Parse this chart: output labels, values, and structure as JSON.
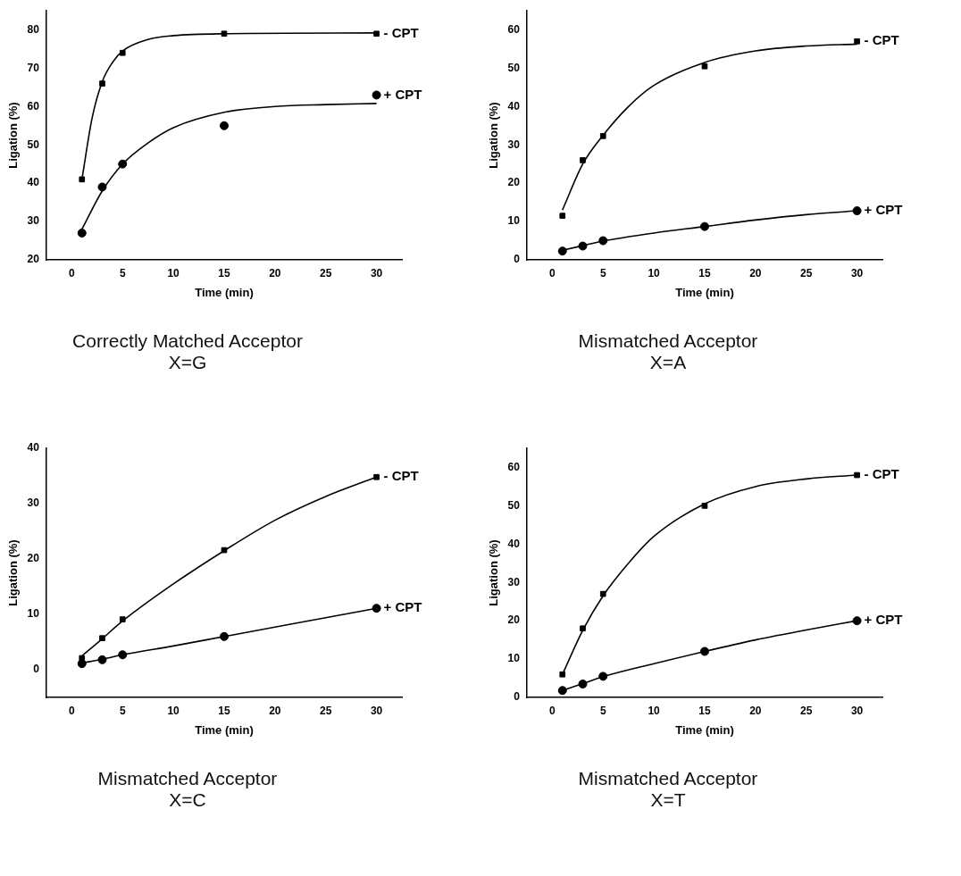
{
  "chart_data": [
    {
      "type": "scatter",
      "title": "Correctly Matched Acceptor",
      "subtitle": "X=G",
      "xlabel": "Time (min)",
      "ylabel": "Ligation (%)",
      "xlim": [
        -2.5,
        32.5
      ],
      "xticks": [
        0,
        5,
        10,
        15,
        20,
        25,
        30
      ],
      "ylim": [
        20,
        85
      ],
      "yticks": [
        20,
        30,
        40,
        50,
        60,
        70,
        80
      ],
      "grid": false,
      "legend": false,
      "series": [
        {
          "name": "- CPT",
          "color": "#000000",
          "marker": "square",
          "x": [
            1,
            3,
            5,
            15,
            30
          ],
          "values": [
            41,
            66,
            74,
            79,
            79
          ]
        },
        {
          "name": "+ CPT",
          "color": "#000000",
          "marker": "circle",
          "x": [
            1,
            3,
            5,
            15,
            30
          ],
          "values": [
            27,
            39,
            45,
            55,
            63
          ]
        },
        {
          "type": "line",
          "color": "#000000",
          "marker": "none",
          "x": [
            1,
            2,
            3,
            4,
            5,
            7.5,
            10,
            15,
            30
          ],
          "values": [
            41,
            57,
            66.5,
            71.5,
            74.5,
            77.5,
            78.5,
            79,
            79.2
          ]
        },
        {
          "type": "line",
          "color": "#000000",
          "marker": "none",
          "x": [
            1,
            3,
            5,
            7.5,
            10,
            15,
            20,
            25,
            30
          ],
          "values": [
            28,
            38,
            45,
            50.5,
            54.5,
            58.5,
            60,
            60.5,
            60.8
          ]
        }
      ]
    },
    {
      "type": "scatter",
      "title": "Mismatched Acceptor",
      "subtitle": "X=A",
      "xlabel": "Time (min)",
      "ylabel": "Ligation (%)",
      "xlim": [
        -2.5,
        32.5
      ],
      "xticks": [
        0,
        5,
        10,
        15,
        20,
        25,
        30
      ],
      "ylim": [
        0,
        65
      ],
      "yticks": [
        0,
        10,
        20,
        30,
        40,
        50,
        60
      ],
      "grid": false,
      "legend": false,
      "series": [
        {
          "name": "- CPT",
          "color": "#000000",
          "marker": "square",
          "x": [
            1,
            3,
            5,
            15,
            30
          ],
          "values": [
            11.5,
            26,
            32.3,
            50.5,
            57
          ]
        },
        {
          "name": "+ CPT",
          "color": "#000000",
          "marker": "circle",
          "x": [
            1,
            3,
            5,
            15,
            30
          ],
          "values": [
            2.3,
            3.6,
            5,
            8.7,
            12.8
          ]
        },
        {
          "type": "line",
          "color": "#000000",
          "marker": "none",
          "x": [
            1,
            3,
            5,
            7.5,
            10,
            15,
            20,
            25,
            30
          ],
          "values": [
            13,
            25,
            32.5,
            40,
            45.5,
            51.5,
            54.5,
            55.8,
            56.3
          ]
        },
        {
          "type": "line",
          "color": "#000000",
          "marker": "none",
          "x": [
            1,
            3,
            5,
            10,
            15,
            20,
            25,
            30
          ],
          "values": [
            2.5,
            3.7,
            4.9,
            7,
            8.7,
            10.4,
            11.8,
            12.8
          ]
        }
      ]
    },
    {
      "type": "scatter",
      "title": "Mismatched Acceptor",
      "subtitle": "X=C",
      "xlabel": "Time (min)",
      "ylabel": "Ligation (%)",
      "xlim": [
        -2.5,
        32.5
      ],
      "xticks": [
        0,
        5,
        10,
        15,
        20,
        25,
        30
      ],
      "ylim": [
        -5,
        40
      ],
      "yticks": [
        0,
        10,
        20,
        30,
        40
      ],
      "grid": false,
      "legend": false,
      "series": [
        {
          "name": "- CPT",
          "color": "#000000",
          "marker": "square",
          "x": [
            1,
            3,
            5,
            15,
            30
          ],
          "values": [
            2.1,
            5.7,
            9.1,
            21.6,
            34.8
          ]
        },
        {
          "name": "+ CPT",
          "color": "#000000",
          "marker": "circle",
          "x": [
            1,
            3,
            5,
            15,
            30
          ],
          "values": [
            1.1,
            1.8,
            2.7,
            6,
            11.1
          ]
        },
        {
          "type": "line",
          "color": "#000000",
          "marker": "none",
          "x": [
            1,
            3,
            5,
            10,
            15,
            20,
            25,
            30
          ],
          "values": [
            2.5,
            5.6,
            8.8,
            15.5,
            21.5,
            27,
            31.3,
            34.8
          ]
        },
        {
          "type": "line",
          "color": "#000000",
          "marker": "none",
          "x": [
            1,
            3,
            5,
            10,
            15,
            20,
            25,
            30
          ],
          "values": [
            1.2,
            1.9,
            2.7,
            4.3,
            6,
            7.7,
            9.4,
            11.1
          ]
        }
      ]
    },
    {
      "type": "scatter",
      "title": "Mismatched Acceptor",
      "subtitle": "X=T",
      "xlabel": "Time (min)",
      "ylabel": "Ligation (%)",
      "xlim": [
        -2.5,
        32.5
      ],
      "xticks": [
        0,
        5,
        10,
        15,
        20,
        25,
        30
      ],
      "ylim": [
        0,
        65
      ],
      "yticks": [
        0,
        10,
        20,
        30,
        40,
        50,
        60
      ],
      "grid": false,
      "legend": false,
      "series": [
        {
          "name": "- CPT",
          "color": "#000000",
          "marker": "square",
          "x": [
            1,
            3,
            5,
            15,
            30
          ],
          "values": [
            6,
            18,
            27,
            50,
            58
          ]
        },
        {
          "name": "+ CPT",
          "color": "#000000",
          "marker": "circle",
          "x": [
            1,
            3,
            5,
            15,
            30
          ],
          "values": [
            1.8,
            3.5,
            5.5,
            12,
            20
          ]
        },
        {
          "type": "line",
          "color": "#000000",
          "marker": "none",
          "x": [
            1,
            3,
            5,
            7.5,
            10,
            15,
            20,
            25,
            30
          ],
          "values": [
            6,
            17.5,
            26.5,
            35,
            42,
            50.5,
            55,
            57,
            58
          ]
        },
        {
          "type": "line",
          "color": "#000000",
          "marker": "none",
          "x": [
            1,
            3,
            5,
            10,
            15,
            20,
            25,
            30
          ],
          "values": [
            1.8,
            3.6,
            5.4,
            8.8,
            12,
            15,
            17.6,
            20
          ]
        }
      ]
    }
  ]
}
